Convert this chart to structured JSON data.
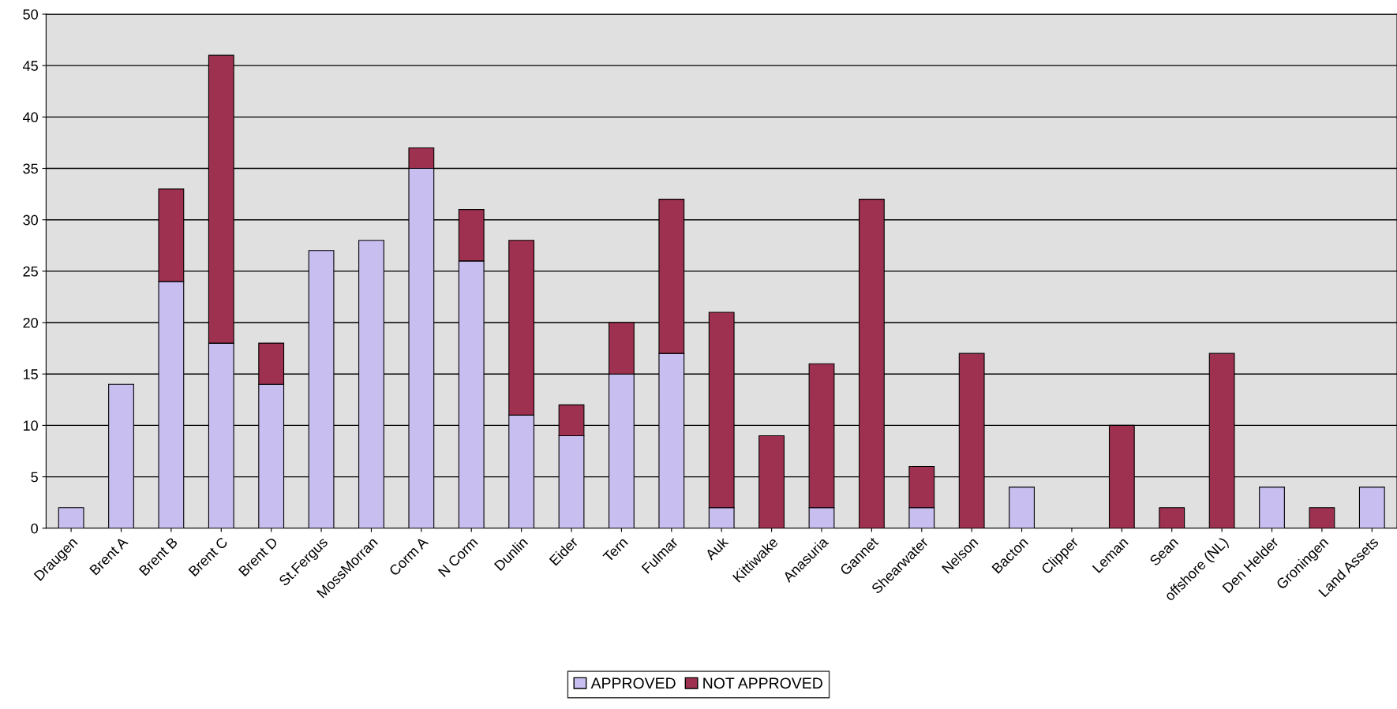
{
  "chart_data": {
    "type": "bar",
    "stacked": true,
    "categories": [
      "Draugen",
      "Brent A",
      "Brent B",
      "Brent C",
      "Brent D",
      "St.Fergus",
      "MossMorran",
      "Corm A",
      "N Corm",
      "Dunlin",
      "Eider",
      "Tern",
      "Fulmar",
      "Auk",
      "Kittiwake",
      "Anasuria",
      "Gannet",
      "Shearwater",
      "Nelson",
      "Bacton",
      "Clipper",
      "Leman",
      "Sean",
      "offshore (NL)",
      "Den Helder",
      "Groningen",
      "Land Assets"
    ],
    "series": [
      {
        "name": "APPROVED",
        "color": "#c8bef0",
        "values": [
          2,
          14,
          24,
          18,
          14,
          27,
          28,
          35,
          26,
          11,
          9,
          15,
          17,
          2,
          0,
          2,
          0,
          2,
          0,
          4,
          0,
          0,
          0,
          0,
          4,
          0,
          4
        ]
      },
      {
        "name": "NOT APPROVED",
        "color": "#9e3050",
        "values": [
          0,
          0,
          9,
          28,
          4,
          0,
          0,
          2,
          5,
          17,
          3,
          5,
          15,
          19,
          9,
          14,
          32,
          4,
          17,
          0,
          0,
          10,
          2,
          17,
          0,
          2,
          0
        ]
      }
    ],
    "ylim": [
      0,
      50
    ],
    "yticks": [
      0,
      5,
      10,
      15,
      20,
      25,
      30,
      35,
      40,
      45,
      50
    ],
    "grid": "y",
    "legend": "bottom"
  }
}
